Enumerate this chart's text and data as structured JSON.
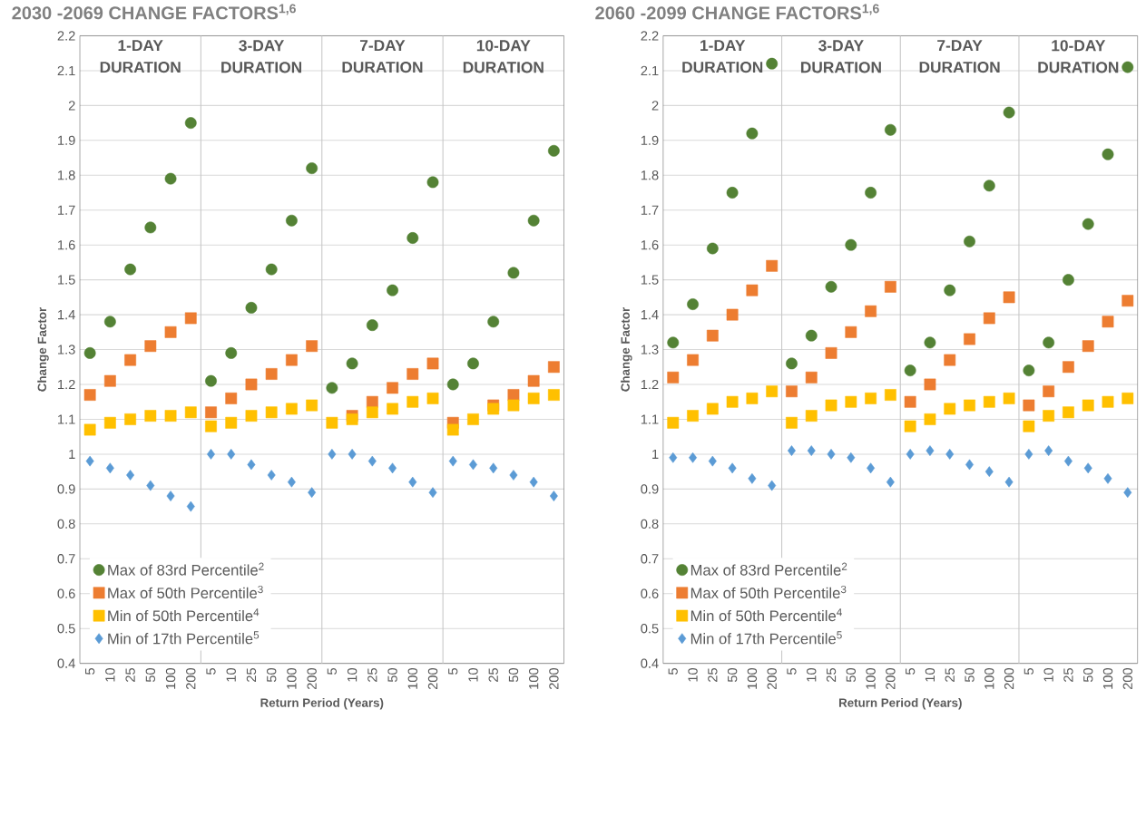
{
  "chart_data": [
    {
      "type": "scatter",
      "title": "2030  -2069 CHANGE FACTORS$^{1,6}$",
      "xlabel": "Return Period (Years)",
      "ylabel": "Change Factor",
      "categories": [
        "5",
        "10",
        "25",
        "50",
        "100",
        "200",
        "5",
        "10",
        "25",
        "50",
        "100",
        "200",
        "5",
        "10",
        "25",
        "50",
        "100",
        "200",
        "5",
        "10",
        "25",
        "50",
        "100",
        "200"
      ],
      "annotations": [
        "1-DAY DURATION",
        "3-DAY DURATION",
        "7-DAY DURATION",
        "10-DAY DURATION"
      ],
      "ylim": [
        0.4,
        2.2
      ],
      "yticks": [
        0.4,
        0.5,
        0.6,
        0.7,
        0.8,
        0.9,
        1,
        1.1,
        1.2,
        1.3,
        1.4,
        1.5,
        1.6,
        1.7,
        1.8,
        1.9,
        2,
        2.1,
        2.2
      ],
      "grid": "y",
      "legend": "bottom left",
      "series": [
        {
          "name": "Max of 83rd Percentile$^{2}$",
          "color": "#548235",
          "marker": "circle",
          "values": [
            1.29,
            1.38,
            1.53,
            1.65,
            1.79,
            1.95,
            1.21,
            1.29,
            1.42,
            1.53,
            1.67,
            1.82,
            1.19,
            1.26,
            1.37,
            1.47,
            1.62,
            1.78,
            1.2,
            1.26,
            1.38,
            1.52,
            1.67,
            1.87
          ]
        },
        {
          "name": "Max of 50th Percentile$^{3}$",
          "color": "#ed7d31",
          "marker": "square",
          "values": [
            1.17,
            1.21,
            1.27,
            1.31,
            1.35,
            1.39,
            1.12,
            1.16,
            1.2,
            1.23,
            1.27,
            1.31,
            null,
            1.11,
            1.15,
            1.19,
            1.23,
            1.26,
            1.09,
            null,
            1.14,
            1.17,
            1.21,
            1.25
          ]
        },
        {
          "name": "Min of 50th Percentile$^{4}$",
          "color": "#ffc000",
          "marker": "square",
          "values": [
            1.07,
            1.09,
            1.1,
            1.11,
            1.11,
            1.12,
            1.08,
            1.09,
            1.11,
            1.12,
            1.13,
            1.14,
            1.09,
            1.1,
            1.12,
            1.13,
            1.15,
            1.16,
            1.07,
            1.1,
            1.13,
            1.14,
            1.16,
            1.17
          ]
        },
        {
          "name": "Min of 17th Percentile$^{5}$",
          "color": "#5b9bd5",
          "marker": "diamond",
          "values": [
            0.98,
            0.96,
            0.94,
            0.91,
            0.88,
            0.85,
            1.0,
            1.0,
            0.97,
            0.94,
            0.92,
            0.89,
            1.0,
            1.0,
            0.98,
            0.96,
            0.92,
            0.89,
            0.98,
            0.97,
            0.96,
            0.94,
            0.92,
            0.88
          ]
        }
      ]
    },
    {
      "type": "scatter",
      "title": "2060  -2099 CHANGE FACTORS$^{1,6}$",
      "xlabel": "Return Period (Years)",
      "ylabel": "Change Factor",
      "categories": [
        "5",
        "10",
        "25",
        "50",
        "100",
        "200",
        "5",
        "10",
        "25",
        "50",
        "100",
        "200",
        "5",
        "10",
        "25",
        "50",
        "100",
        "200",
        "5",
        "10",
        "25",
        "50",
        "100",
        "200"
      ],
      "annotations": [
        "1-DAY DURATION",
        "3-DAY DURATION",
        "7-DAY DURATION",
        "10-DAY DURATION"
      ],
      "ylim": [
        0.4,
        2.2
      ],
      "yticks": [
        0.4,
        0.5,
        0.6,
        0.7,
        0.8,
        0.9,
        1,
        1.1,
        1.2,
        1.3,
        1.4,
        1.5,
        1.6,
        1.7,
        1.8,
        1.9,
        2,
        2.1,
        2.2
      ],
      "grid": "y",
      "legend": "bottom left",
      "series": [
        {
          "name": "Max of 83rd Percentile$^{2}$",
          "color": "#548235",
          "marker": "circle",
          "values": [
            1.32,
            1.43,
            1.59,
            1.75,
            1.92,
            2.12,
            1.26,
            1.34,
            1.48,
            1.6,
            1.75,
            1.93,
            1.24,
            1.32,
            1.47,
            1.61,
            1.77,
            1.98,
            1.24,
            1.32,
            1.5,
            1.66,
            1.86,
            2.11
          ]
        },
        {
          "name": "Max of 50th Percentile$^{3}$",
          "color": "#ed7d31",
          "marker": "square",
          "values": [
            1.22,
            1.27,
            1.34,
            1.4,
            1.47,
            1.54,
            1.18,
            1.22,
            1.29,
            1.35,
            1.41,
            1.48,
            1.15,
            1.2,
            1.27,
            1.33,
            1.39,
            1.45,
            1.14,
            1.18,
            1.25,
            1.31,
            1.38,
            1.44
          ]
        },
        {
          "name": "Min of 50th Percentile$^{4}$",
          "color": "#ffc000",
          "marker": "square",
          "values": [
            1.09,
            1.11,
            1.13,
            1.15,
            1.16,
            1.18,
            1.09,
            1.11,
            1.14,
            1.15,
            1.16,
            1.17,
            1.08,
            1.1,
            1.13,
            1.14,
            1.15,
            1.16,
            1.08,
            1.11,
            1.12,
            1.14,
            1.15,
            1.16
          ]
        },
        {
          "name": "Min of 17th Percentile$^{5}$",
          "color": "#5b9bd5",
          "marker": "diamond",
          "values": [
            0.99,
            0.99,
            0.98,
            0.96,
            0.93,
            0.91,
            1.01,
            1.01,
            1.0,
            0.99,
            0.96,
            0.92,
            1.0,
            1.01,
            1.0,
            0.97,
            0.95,
            0.92,
            1.0,
            1.01,
            0.98,
            0.96,
            0.93,
            0.89
          ]
        }
      ]
    }
  ]
}
